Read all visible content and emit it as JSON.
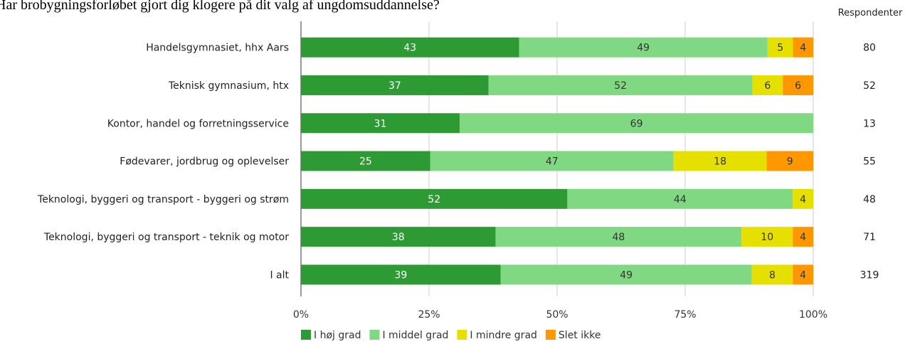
{
  "chart_data": {
    "type": "bar",
    "orientation": "horizontal",
    "stacked": true,
    "title": "Har brobygningsforløbet gjort dig klogere på dit valg af ungdomsuddannelse?",
    "categories": [
      "Handelsgymnasiet, hhx Aars",
      "Teknisk gymnasium, htx",
      "Kontor, handel og forretningsservice",
      "Fødevarer, jordbrug og oplevelser",
      "Teknologi, byggeri og transport - byggeri og strøm",
      "Teknologi, byggeri og transport - teknik og motor",
      "I alt"
    ],
    "series": [
      {
        "name": "I høj grad",
        "color": "#2e9a34",
        "label_color": "#ffffff",
        "values": [
          43,
          37,
          31,
          25,
          52,
          38,
          39
        ]
      },
      {
        "name": "I middel grad",
        "color": "#80d982",
        "label_color": "#333333",
        "values": [
          49,
          52,
          69,
          47,
          44,
          48,
          49
        ]
      },
      {
        "name": "I mindre grad",
        "color": "#e5e000",
        "label_color": "#333333",
        "values": [
          5,
          6,
          0,
          18,
          4,
          10,
          8
        ]
      },
      {
        "name": "Slet ikke",
        "color": "#ff9800",
        "label_color": "#333333",
        "values": [
          4,
          6,
          0,
          9,
          0,
          4,
          4
        ]
      }
    ],
    "respondents_header": "Respondenter",
    "respondents": [
      80,
      52,
      13,
      55,
      48,
      71,
      319
    ],
    "x_ticks": [
      "0%",
      "25%",
      "50%",
      "75%",
      "100%"
    ],
    "xlim": [
      0,
      100
    ],
    "grid": true,
    "legend_position": "bottom-left"
  }
}
